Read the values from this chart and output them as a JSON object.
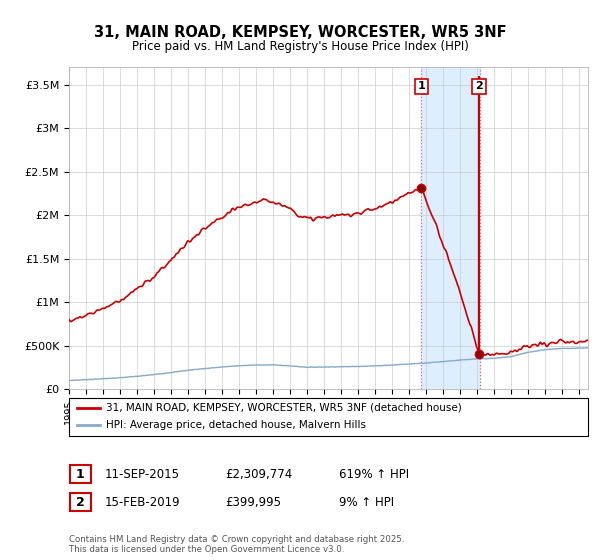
{
  "title_line1": "31, MAIN ROAD, KEMPSEY, WORCESTER, WR5 3NF",
  "title_line2": "Price paid vs. HM Land Registry's House Price Index (HPI)",
  "ylabel_ticks": [
    "£0",
    "£500K",
    "£1M",
    "£1.5M",
    "£2M",
    "£2.5M",
    "£3M",
    "£3.5M"
  ],
  "ytick_values": [
    0,
    500000,
    1000000,
    1500000,
    2000000,
    2500000,
    3000000,
    3500000
  ],
  "ylim": [
    0,
    3700000
  ],
  "xlim_start": 1995.3,
  "xlim_end": 2025.5,
  "highlight_x_start": 2015.7,
  "highlight_x_end": 2019.15,
  "highlight_color": "#ddeeff",
  "sale1_year": 2015.7,
  "sale1_value": 2309774,
  "sale2_year": 2019.1,
  "sale2_value": 399995,
  "annotation1_label": "1",
  "annotation2_label": "2",
  "red_line_color": "#cc0000",
  "blue_line_color": "#88aacc",
  "legend_line1": "31, MAIN ROAD, KEMPSEY, WORCESTER, WR5 3NF (detached house)",
  "legend_line2": "HPI: Average price, detached house, Malvern Hills",
  "table_row1_num": "1",
  "table_row1_date": "11-SEP-2015",
  "table_row1_price": "£2,309,774",
  "table_row1_hpi": "619% ↑ HPI",
  "table_row2_num": "2",
  "table_row2_date": "15-FEB-2019",
  "table_row2_price": "£399,995",
  "table_row2_hpi": "9% ↑ HPI",
  "footnote_line1": "Contains HM Land Registry data © Crown copyright and database right 2025.",
  "footnote_line2": "This data is licensed under the Open Government Licence v3.0."
}
